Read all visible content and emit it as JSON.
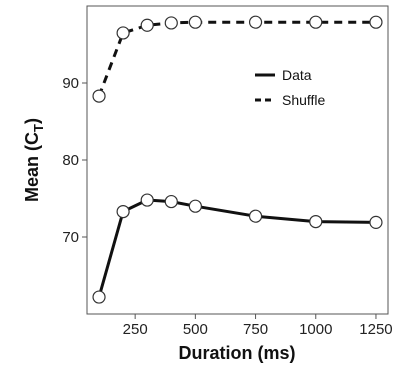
{
  "chart_data": {
    "type": "line",
    "xlabel": "Duration (ms)",
    "ylabel": {
      "main": "Mean (C",
      "subscript": "T",
      "close": ")"
    },
    "x": [
      100,
      200,
      300,
      400,
      500,
      750,
      1000,
      1250
    ],
    "x_ticks": [
      250,
      500,
      750,
      1000,
      1250
    ],
    "y_ticks": [
      70,
      80,
      90
    ],
    "xlim": [
      50,
      1300
    ],
    "ylim": [
      60,
      100
    ],
    "grid": false,
    "legend_position": "top-right",
    "series": [
      {
        "name": "Data",
        "line_style": "solid",
        "values": [
          62.2,
          73.3,
          74.8,
          74.6,
          74.0,
          72.7,
          72.0,
          71.9
        ]
      },
      {
        "name": "Shuffle",
        "line_style": "dashed",
        "values": [
          88.3,
          96.5,
          97.5,
          97.8,
          97.9,
          97.9,
          97.9,
          97.9
        ]
      }
    ],
    "colors": {
      "line": "#111111",
      "marker_fill": "#ffffff",
      "marker_stroke": "#333333",
      "frame": "#555555"
    }
  }
}
